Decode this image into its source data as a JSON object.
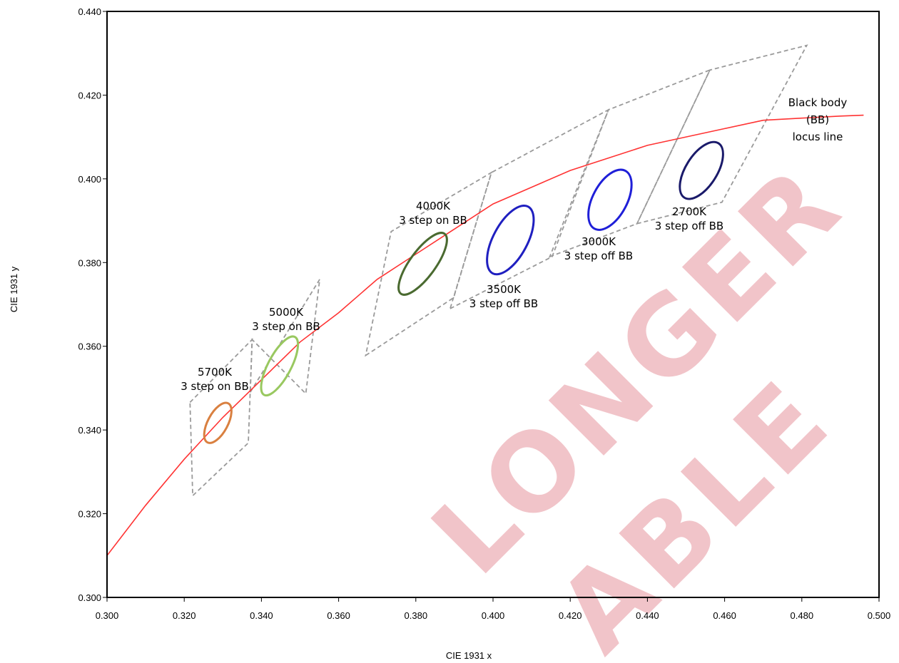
{
  "chart_data": {
    "type": "scatter",
    "xlabel": "CIE 1931 x",
    "ylabel": "CIE 1931 y",
    "xlim": [
      0.3,
      0.5
    ],
    "ylim": [
      0.3,
      0.44
    ],
    "xticks": [
      "0.300",
      "0.320",
      "0.340",
      "0.360",
      "0.380",
      "0.400",
      "0.420",
      "0.440",
      "0.460",
      "0.480",
      "0.500"
    ],
    "yticks": [
      "0.300",
      "0.320",
      "0.340",
      "0.360",
      "0.380",
      "0.400",
      "0.420",
      "0.440"
    ],
    "grid": false,
    "locus": {
      "label_lines": [
        "Black body",
        "(BB)",
        "locus line"
      ],
      "color": "#ff3333",
      "x": [
        0.3,
        0.31,
        0.32,
        0.33,
        0.34,
        0.35,
        0.36,
        0.37,
        0.38,
        0.39,
        0.4,
        0.41,
        0.42,
        0.43,
        0.44,
        0.45,
        0.46,
        0.47,
        0.48,
        0.49,
        0.496
      ],
      "y": [
        0.31,
        0.322,
        0.333,
        0.343,
        0.352,
        0.361,
        0.368,
        0.376,
        0.382,
        0.388,
        0.394,
        0.398,
        0.402,
        0.405,
        0.408,
        0.41,
        0.412,
        0.414,
        0.4145,
        0.415,
        0.4152
      ]
    },
    "quadrangles": [
      {
        "cct": "5700K",
        "points": [
          [
            0.3215,
            0.3466
          ],
          [
            0.3376,
            0.3616
          ],
          [
            0.3366,
            0.3369
          ],
          [
            0.3222,
            0.3243
          ]
        ]
      },
      {
        "cct": "5000K",
        "points": [
          [
            0.3371,
            0.349
          ],
          [
            0.3551,
            0.376
          ],
          [
            0.3515,
            0.3487
          ],
          [
            0.3376,
            0.3616
          ]
        ]
      },
      {
        "cct": "4000K",
        "points": [
          [
            0.367,
            0.3578
          ],
          [
            0.3898,
            0.3716
          ],
          [
            0.3996,
            0.4015
          ],
          [
            0.3736,
            0.3874
          ]
        ]
      },
      {
        "cct": "3500K",
        "points": [
          [
            0.3889,
            0.369
          ],
          [
            0.4153,
            0.3814
          ],
          [
            0.4299,
            0.4165
          ],
          [
            0.3996,
            0.4015
          ]
        ]
      },
      {
        "cct": "3000K",
        "points": [
          [
            0.4147,
            0.3814
          ],
          [
            0.4373,
            0.3893
          ],
          [
            0.4562,
            0.426
          ],
          [
            0.4299,
            0.4165
          ]
        ]
      },
      {
        "cct": "2700K",
        "points": [
          [
            0.4373,
            0.3893
          ],
          [
            0.4593,
            0.3944
          ],
          [
            0.4813,
            0.4319
          ],
          [
            0.4562,
            0.426
          ]
        ]
      }
    ],
    "ellipses": [
      {
        "cct": "5700K",
        "center": [
          0.3287,
          0.3417
        ],
        "color": "#d98040",
        "label_lines": [
          "5700K",
          "3 step on BB"
        ]
      },
      {
        "cct": "5000K",
        "center": [
          0.3447,
          0.3553
        ],
        "color": "#99c860",
        "label_lines": [
          "5000K",
          "3 step on BB"
        ]
      },
      {
        "cct": "4000K",
        "center": [
          0.3818,
          0.3797
        ],
        "color": "#4a6a30",
        "label_lines": [
          "4000K",
          "3 step on BB"
        ]
      },
      {
        "cct": "3500K",
        "center": [
          0.4045,
          0.3854
        ],
        "color": "#1f1fc0",
        "label_lines": [
          "3500K",
          "3 step off BB"
        ]
      },
      {
        "cct": "3000K",
        "center": [
          0.4303,
          0.395
        ],
        "color": "#1f1fd8",
        "label_lines": [
          "3000K",
          "3 step off BB"
        ]
      },
      {
        "cct": "2700K",
        "center": [
          0.454,
          0.402
        ],
        "color": "#1a1a6a",
        "label_lines": [
          "2700K",
          "3 step off BB"
        ]
      }
    ],
    "watermark": [
      "LONGER",
      "ABLE"
    ]
  }
}
